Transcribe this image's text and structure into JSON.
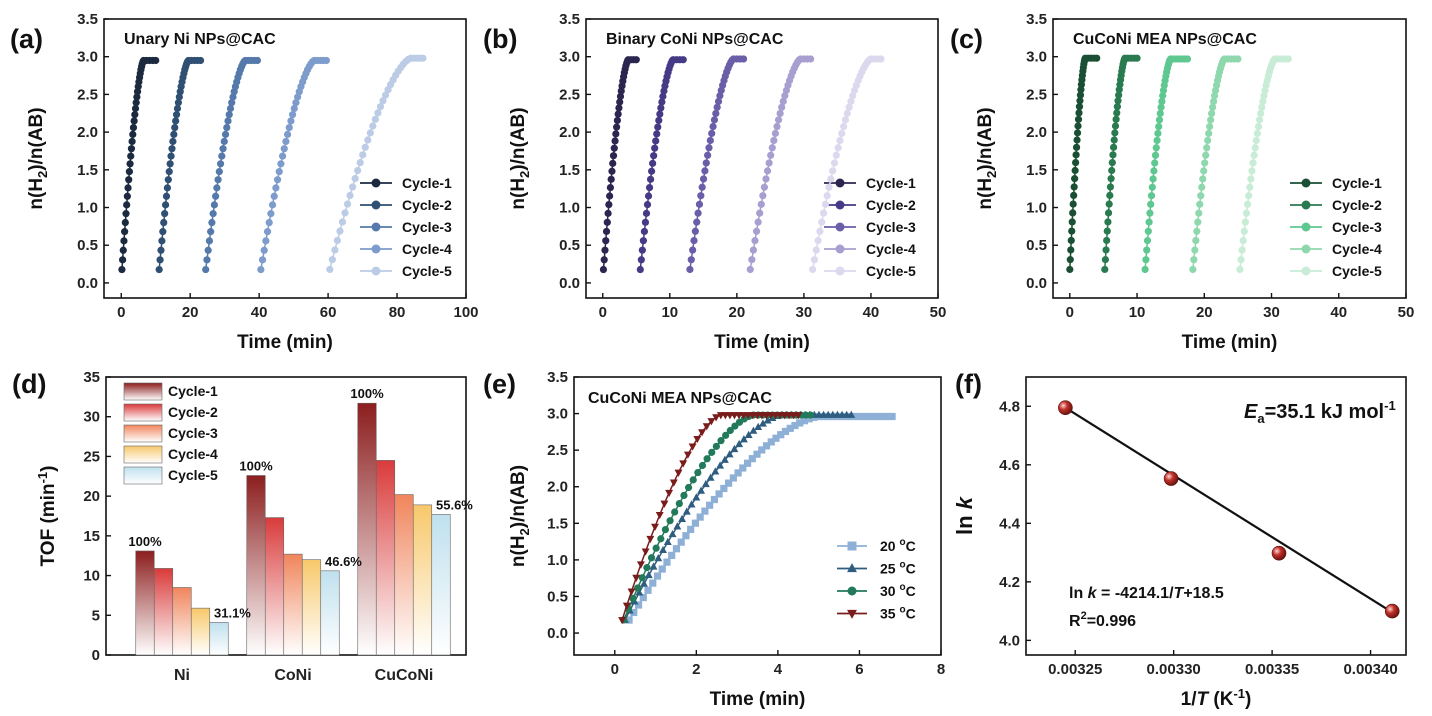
{
  "chart_data": [
    {
      "id": "a",
      "type": "line",
      "panel_label": "(a)",
      "title": "Unary Ni NPs@CAC",
      "xlabel": "Time (min)",
      "ylabel_main": "n(H",
      "ylabel_sub": "2",
      "ylabel_rest": ")/n(AB)",
      "xlim": [
        -5,
        100
      ],
      "ylim": [
        -0.2,
        3.5
      ],
      "xticks": [
        0,
        20,
        40,
        60,
        80,
        100
      ],
      "yticks": [
        0.0,
        0.5,
        1.0,
        1.5,
        2.0,
        2.5,
        3.0,
        3.5
      ],
      "xtick_labels": [
        "0",
        "20",
        "40",
        "60",
        "80",
        "100"
      ],
      "ytick_labels": [
        "0.0",
        "0.5",
        "1.0",
        "1.5",
        "2.0",
        "2.5",
        "3.0",
        "3.5"
      ],
      "series": [
        {
          "name": "Cycle-1",
          "color": "#1b2a3f",
          "start": 0.2,
          "end": 6.5,
          "plateau_end": 10,
          "ymax": 2.95
        },
        {
          "name": "Cycle-2",
          "color": "#2f4f73",
          "start": 11,
          "end": 19.5,
          "plateau_end": 23,
          "ymax": 2.95
        },
        {
          "name": "Cycle-3",
          "color": "#5579aa",
          "start": 24.5,
          "end": 36,
          "plateau_end": 39.5,
          "ymax": 2.95
        },
        {
          "name": "Cycle-4",
          "color": "#7d9ccb",
          "start": 40.5,
          "end": 56,
          "plateau_end": 59.5,
          "ymax": 2.95
        },
        {
          "name": "Cycle-5",
          "color": "#bccce6",
          "start": 60.5,
          "end": 84,
          "plateau_end": 87.5,
          "ymax": 2.98
        }
      ]
    },
    {
      "id": "b",
      "type": "line",
      "panel_label": "(b)",
      "title": "Binary CoNi NPs@CAC",
      "xlabel": "Time (min)",
      "ylabel_main": "n(H",
      "ylabel_sub": "2",
      "ylabel_rest": ")/n(AB)",
      "xlim": [
        -2.5,
        50
      ],
      "ylim": [
        -0.2,
        3.5
      ],
      "xticks": [
        0,
        10,
        20,
        30,
        40,
        50
      ],
      "yticks": [
        0.0,
        0.5,
        1.0,
        1.5,
        2.0,
        2.5,
        3.0,
        3.5
      ],
      "xtick_labels": [
        "0",
        "10",
        "20",
        "30",
        "40",
        "50"
      ],
      "ytick_labels": [
        "0.0",
        "0.5",
        "1.0",
        "1.5",
        "2.0",
        "2.5",
        "3.0",
        "3.5"
      ],
      "series": [
        {
          "name": "Cycle-1",
          "color": "#2b2650",
          "start": 0.1,
          "end": 3.8,
          "plateau_end": 5,
          "ymax": 2.96
        },
        {
          "name": "Cycle-2",
          "color": "#453a85",
          "start": 5.6,
          "end": 10.5,
          "plateau_end": 12,
          "ymax": 2.96
        },
        {
          "name": "Cycle-3",
          "color": "#6a5ea8",
          "start": 13,
          "end": 19.5,
          "plateau_end": 21,
          "ymax": 2.97
        },
        {
          "name": "Cycle-4",
          "color": "#a89fd0",
          "start": 22,
          "end": 29.5,
          "plateau_end": 31,
          "ymax": 2.97
        },
        {
          "name": "Cycle-5",
          "color": "#dcd8ee",
          "start": 31.3,
          "end": 40,
          "plateau_end": 41.5,
          "ymax": 2.97
        }
      ]
    },
    {
      "id": "c",
      "type": "line",
      "panel_label": "(c)",
      "title": "CuCoNi MEA NPs@CAC",
      "xlabel": "Time (min)",
      "ylabel_main": "n(H",
      "ylabel_sub": "2",
      "ylabel_rest": ")/n(AB)",
      "xlim": [
        -2.5,
        50
      ],
      "ylim": [
        -0.2,
        3.5
      ],
      "xticks": [
        0,
        10,
        20,
        30,
        40,
        50
      ],
      "yticks": [
        0.0,
        0.5,
        1.0,
        1.5,
        2.0,
        2.5,
        3.0,
        3.5
      ],
      "xtick_labels": [
        "0",
        "10",
        "20",
        "30",
        "40",
        "50"
      ],
      "ytick_labels": [
        "0.0",
        "0.5",
        "1.0",
        "1.5",
        "2.0",
        "2.5",
        "3.0",
        "3.5"
      ],
      "series": [
        {
          "name": "Cycle-1",
          "color": "#1a4f34",
          "start": 0,
          "end": 2.3,
          "plateau_end": 4,
          "ymax": 2.98
        },
        {
          "name": "Cycle-2",
          "color": "#2a7a4f",
          "start": 5.2,
          "end": 8.2,
          "plateau_end": 10,
          "ymax": 2.98
        },
        {
          "name": "Cycle-3",
          "color": "#5fc790",
          "start": 11.2,
          "end": 15,
          "plateau_end": 17.5,
          "ymax": 2.97
        },
        {
          "name": "Cycle-4",
          "color": "#8fd8ae",
          "start": 18.3,
          "end": 23,
          "plateau_end": 25,
          "ymax": 2.97
        },
        {
          "name": "Cycle-5",
          "color": "#c9ecd7",
          "start": 25.3,
          "end": 30.5,
          "plateau_end": 32.5,
          "ymax": 2.97
        }
      ]
    },
    {
      "id": "d",
      "type": "bar",
      "panel_label": "(d)",
      "xlabel": "",
      "ylabel_main": "TOF (min",
      "ylabel_sup": "-1",
      "ylabel_rest": ")",
      "ylim": [
        0,
        35
      ],
      "yticks": [
        0,
        5,
        10,
        15,
        20,
        25,
        30,
        35
      ],
      "ytick_labels": [
        "0",
        "5",
        "10",
        "15",
        "20",
        "25",
        "30",
        "35"
      ],
      "categories": [
        "Ni",
        "CoNi",
        "CuCoNi"
      ],
      "series": [
        {
          "name": "Cycle-1",
          "color": "#8c1e1e",
          "values": [
            13.1,
            22.6,
            31.7
          ]
        },
        {
          "name": "Cycle-2",
          "color": "#d93b3b",
          "values": [
            10.9,
            17.3,
            24.5
          ]
        },
        {
          "name": "Cycle-3",
          "color": "#f0855c",
          "values": [
            8.5,
            12.7,
            20.2
          ]
        },
        {
          "name": "Cycle-4",
          "color": "#f7c86a",
          "values": [
            5.9,
            12.0,
            18.9
          ]
        },
        {
          "name": "Cycle-5",
          "color": "#bfe0ee",
          "values": [
            4.1,
            10.6,
            17.7
          ]
        }
      ],
      "annotations": [
        {
          "text": "100%",
          "category": 0,
          "series": 0
        },
        {
          "text": "31.1%",
          "category": 0,
          "series": 4
        },
        {
          "text": "100%",
          "category": 1,
          "series": 0
        },
        {
          "text": "46.6%",
          "category": 1,
          "series": 4
        },
        {
          "text": "100%",
          "category": 2,
          "series": 0
        },
        {
          "text": "55.6%",
          "category": 2,
          "series": 4
        }
      ]
    },
    {
      "id": "e",
      "type": "line",
      "panel_label": "(e)",
      "title": "CuCoNi MEA NPs@CAC",
      "xlabel": "Time (min)",
      "ylabel_main": "n(H",
      "ylabel_sub": "2",
      "ylabel_rest": ")/n(AB)",
      "xlim": [
        -1,
        8
      ],
      "ylim": [
        -0.3,
        3.5
      ],
      "xticks": [
        0,
        2,
        4,
        6,
        8
      ],
      "yticks": [
        0.0,
        0.5,
        1.0,
        1.5,
        2.0,
        2.5,
        3.0,
        3.5
      ],
      "xtick_labels": [
        "0",
        "2",
        "4",
        "6",
        "8"
      ],
      "ytick_labels": [
        "0.0",
        "0.5",
        "1.0",
        "1.5",
        "2.0",
        "2.5",
        "3.0",
        "3.5"
      ],
      "series": [
        {
          "name": "20 °C",
          "label_pre": "20 ",
          "label_sup": "o",
          "label_post": "C",
          "marker": "square",
          "color": "#8fb0d6",
          "start": 0.35,
          "end": 5.0,
          "plateau_end": 6.8,
          "ymax": 2.96
        },
        {
          "name": "25 °C",
          "label_pre": "25 ",
          "label_sup": "o",
          "label_post": "C",
          "marker": "triangle",
          "color": "#2f5d80",
          "start": 0.25,
          "end": 4.1,
          "plateau_end": 5.8,
          "ymax": 2.98
        },
        {
          "name": "30 °C",
          "label_pre": "30 ",
          "label_sup": "o",
          "label_post": "C",
          "marker": "circle",
          "color": "#227a5b",
          "start": 0.22,
          "end": 3.4,
          "plateau_end": 4.8,
          "ymax": 2.98
        },
        {
          "name": "35 °C",
          "label_pre": "35 ",
          "label_sup": "o",
          "label_post": "C",
          "marker": "invtriangle",
          "color": "#7a1c1c",
          "start": 0.18,
          "end": 2.6,
          "plateau_end": 4.5,
          "ymax": 2.98
        }
      ]
    },
    {
      "id": "f",
      "type": "scatter",
      "panel_label": "(f)",
      "xlabel_main": "1/",
      "xlabel_ital": "T",
      "xlabel_rest": " (K",
      "xlabel_sup": "-1",
      "xlabel_end": ")",
      "ylabel_main": "ln ",
      "ylabel_ital": "k",
      "xlim": [
        0.003225,
        0.003418
      ],
      "ylim": [
        3.95,
        4.9
      ],
      "xticks": [
        0.00325,
        0.0033,
        0.00335,
        0.0034
      ],
      "yticks": [
        4.0,
        4.2,
        4.4,
        4.6,
        4.8
      ],
      "xtick_labels": [
        "0.00325",
        "0.00330",
        "0.00335",
        "0.00340"
      ],
      "ytick_labels": [
        "4.0",
        "4.2",
        "4.4",
        "4.6",
        "4.8"
      ],
      "x": [
        0.003245,
        0.0032987,
        0.0033535,
        0.003411
      ],
      "y": [
        4.795,
        4.553,
        4.298,
        4.1
      ],
      "fit": {
        "slope": -4214.1,
        "intercept": 18.47
      },
      "marker_color": "#c0302a",
      "ea_main": "E",
      "ea_sub": "a",
      "ea_rest": "=35.1 kJ mol",
      "ea_sup": "-1",
      "eq_pre": "ln ",
      "eq_k": "k",
      "eq_mid": " = -4214.1/",
      "eq_T": "T",
      "eq_post": "+18.5",
      "r2_pre": "R",
      "r2_sup": "2",
      "r2_post": "=0.996"
    }
  ]
}
